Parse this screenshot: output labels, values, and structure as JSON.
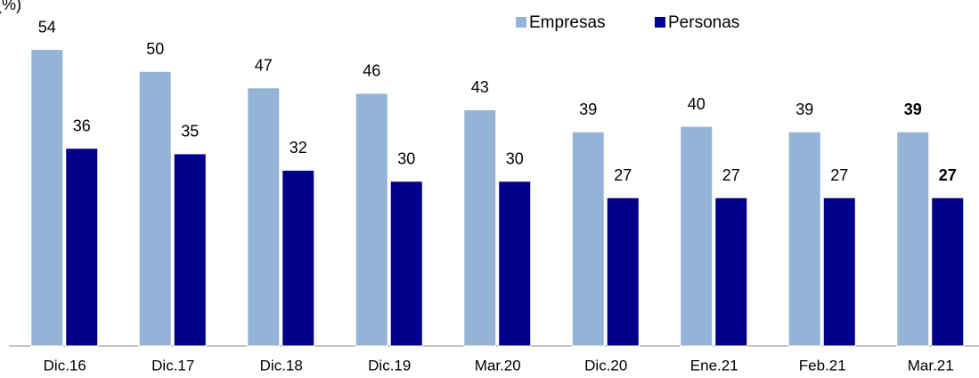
{
  "chart_data": {
    "type": "bar",
    "unit_label": "(%)",
    "categories": [
      "Dic.16",
      "Dic.17",
      "Dic.18",
      "Dic.19",
      "Mar.20",
      "Dic.20",
      "Ene.21",
      "Feb.21",
      "Mar.21"
    ],
    "series": [
      {
        "name": "Empresas",
        "color": "#95b3d7",
        "values": [
          54,
          50,
          47,
          46,
          43,
          39,
          40,
          39,
          39
        ]
      },
      {
        "name": "Personas",
        "color": "#00008b",
        "values": [
          36,
          35,
          32,
          30,
          30,
          27,
          27,
          27,
          27
        ]
      }
    ],
    "ylim": [
      0,
      63
    ],
    "legend": "top-right",
    "bold_last": true
  }
}
